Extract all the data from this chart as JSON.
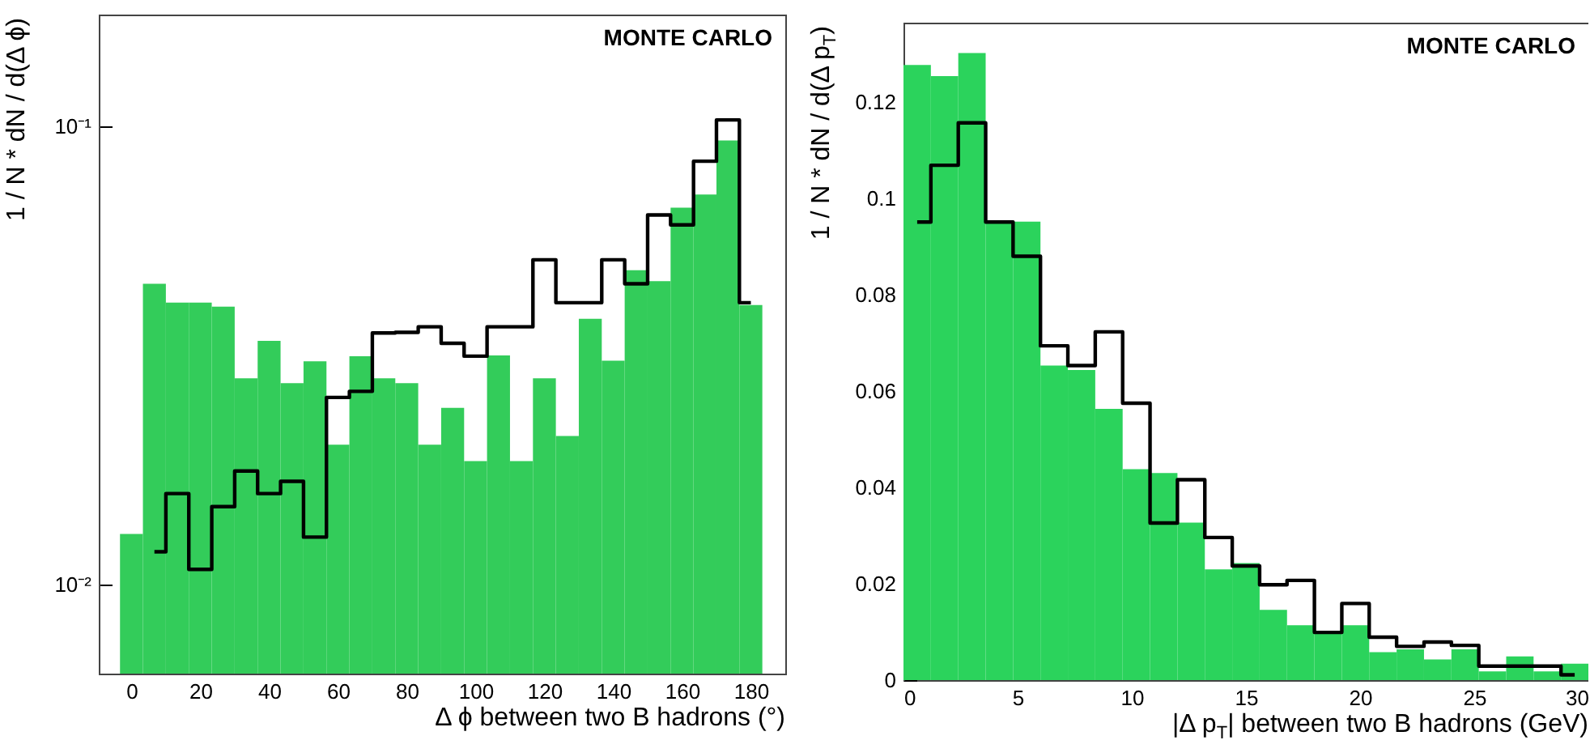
{
  "chart_data": [
    {
      "type": "histogram",
      "xlabel": "Δ ϕ between two B hadrons (°)",
      "ylabel": "1 / N * dN / d(Δ ϕ)",
      "annotations": [
        "MONTE CARLO"
      ],
      "log": true,
      "bins": [
        -3.33,
        3.33,
        10,
        16.67,
        23.33,
        30,
        36.67,
        43.33,
        50,
        56.67,
        63.33,
        70,
        76.67,
        83.33,
        90,
        96.67,
        103.33,
        110,
        116.67,
        123.33,
        130,
        136.67,
        143.33,
        150,
        156.67,
        163.33,
        170,
        176.67,
        183.33
      ],
      "xlim": [
        -9.5,
        190
      ],
      "xticks": [
        0,
        20,
        40,
        60,
        80,
        100,
        120,
        140,
        160,
        180
      ],
      "ylim": [
        0.0064,
        0.175
      ],
      "yticks": [
        {
          "value": 0.01,
          "label": "10⁻²"
        },
        {
          "value": 0.1,
          "label": "10⁻¹"
        }
      ],
      "series": [
        {
          "color": "#33cc5a",
          "values": [
            0.0129,
            0.0453,
            0.0412,
            0.0412,
            0.0404,
            0.0282,
            0.034,
            0.0275,
            0.0307,
            0.0202,
            0.0315,
            0.0282,
            0.0275,
            0.0202,
            0.0243,
            0.0186,
            0.0316,
            0.0186,
            0.0282,
            0.0211,
            0.038,
            0.0308,
            0.0485,
            0.0459,
            0.0664,
            0.0709,
            0.093,
            0.0407
          ]
        },
        {
          "type": "step",
          "color": "#000000",
          "x": [
            6.67,
            13.33,
            20,
            26.67,
            33.33,
            40,
            46.67,
            53.33,
            60,
            66.67,
            73.33,
            80,
            86.67,
            93.33,
            100,
            106.67,
            113.33,
            120,
            126.67,
            133.33,
            140,
            146.67,
            153.33,
            160,
            166.67,
            173.33,
            180
          ],
          "values": [
            0.0118,
            0.0158,
            0.0108,
            0.0148,
            0.0177,
            0.0158,
            0.0168,
            0.0127,
            0.0256,
            0.0264,
            0.0354,
            0.0355,
            0.0365,
            0.0336,
            0.0315,
            0.0365,
            0.0365,
            0.0511,
            0.0412,
            0.0412,
            0.0511,
            0.0453,
            0.064,
            0.0609,
            0.0838,
            0.1031,
            0.0412
          ]
        }
      ]
    },
    {
      "type": "histogram",
      "xlabel": "|Δ p$_{T}$| between two B hadrons (GeV)",
      "ylabel": "1 / N * dN / d(Δ p$_{T}$)",
      "annotations": [
        "MONTE CARLO"
      ],
      "bins": [
        0,
        1.2,
        2.4,
        3.6,
        4.8,
        6,
        7.2,
        8.4,
        9.6,
        10.8,
        12,
        13.2,
        14.4,
        15.6,
        16.8,
        18,
        19.2,
        20.4,
        21.6,
        22.8,
        24,
        25.2,
        26.4,
        27.6,
        28.8,
        30
      ],
      "xlim": [
        0,
        30
      ],
      "xticks": [
        0,
        5,
        10,
        15,
        20,
        25,
        30
      ],
      "ylim": [
        0,
        0.1365
      ],
      "yticks": [
        0,
        0.02,
        0.04,
        0.06,
        0.08,
        0.1,
        0.12
      ],
      "series": [
        {
          "color": "#2bd35c",
          "values": [
            0.1277,
            0.1254,
            0.1302,
            0.0952,
            0.0952,
            0.0653,
            0.0644,
            0.0563,
            0.0438,
            0.043,
            0.0327,
            0.023,
            0.0243,
            0.0146,
            0.0114,
            0.0099,
            0.0114,
            0.0058,
            0.0064,
            0.0043,
            0.0064,
            0.0018,
            0.0049,
            0.0018,
            0.0034
          ]
        },
        {
          "type": "step",
          "color": "#000000",
          "x": [
            0.6,
            1.8,
            3,
            4.2,
            5.4,
            6.6,
            7.8,
            9,
            10.2,
            11.4,
            12.6,
            13.8,
            15,
            16.2,
            17.4,
            18.6,
            19.8,
            21,
            22.2,
            23.4,
            24.6,
            25.8,
            27,
            28.2,
            29.4
          ],
          "values": [
            0.0951,
            0.1069,
            0.1157,
            0.0951,
            0.088,
            0.0694,
            0.0653,
            0.0723,
            0.0575,
            0.0326,
            0.0416,
            0.0296,
            0.0237,
            0.0198,
            0.0207,
            0.0099,
            0.0159,
            0.0089,
            0.007,
            0.0079,
            0.0072,
            0.0029,
            0.0029,
            0.0029,
            0.0011
          ]
        }
      ]
    }
  ]
}
